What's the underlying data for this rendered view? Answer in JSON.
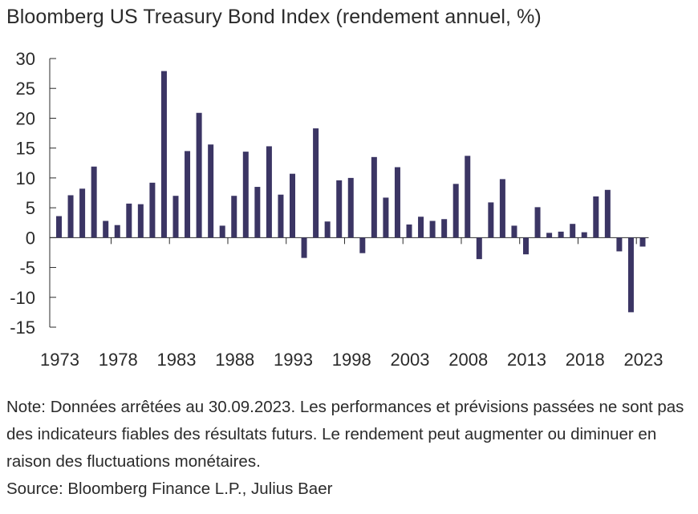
{
  "title": "Bloomberg US Treasury Bond Index (rendement annuel, %)",
  "note": "Note: Données arrêtées au 30.09.2023. Les performances et prévisions passées ne sont pas des indicateurs fiables des résultats futurs. Le rendement peut augmenter ou diminuer en raison des fluctuations monétaires.",
  "source": "Source: Bloomberg Finance L.P., Julius Baer",
  "colors": {
    "bar": "#3b3564",
    "axis": "#2b2b2b",
    "text": "#2b2b2b"
  },
  "chart_data": {
    "type": "bar",
    "title": "Bloomberg US Treasury Bond Index (rendement annuel, %)",
    "xlabel": "",
    "ylabel": "",
    "ylim": [
      -15,
      30
    ],
    "yticks": [
      30,
      25,
      20,
      15,
      10,
      5,
      0,
      -5,
      -10,
      -15
    ],
    "xtick_labels": [
      "1973",
      "1978",
      "1983",
      "1988",
      "1993",
      "1998",
      "2003",
      "2008",
      "2013",
      "2018",
      "2023"
    ],
    "grid": false,
    "legend": "none",
    "categories": [
      "1973",
      "1974",
      "1975",
      "1976",
      "1977",
      "1978",
      "1979",
      "1980",
      "1981",
      "1982",
      "1983",
      "1984",
      "1985",
      "1986",
      "1987",
      "1988",
      "1989",
      "1990",
      "1991",
      "1992",
      "1993",
      "1994",
      "1995",
      "1996",
      "1997",
      "1998",
      "1999",
      "2000",
      "2001",
      "2002",
      "2003",
      "2004",
      "2005",
      "2006",
      "2007",
      "2008",
      "2009",
      "2010",
      "2011",
      "2012",
      "2013",
      "2014",
      "2015",
      "2016",
      "2017",
      "2018",
      "2019",
      "2020",
      "2021",
      "2022",
      "2023"
    ],
    "values": [
      3.6,
      7.1,
      8.2,
      11.9,
      2.8,
      2.1,
      5.7,
      5.6,
      9.2,
      27.9,
      7.0,
      14.5,
      20.9,
      15.6,
      2.0,
      7.0,
      14.4,
      8.5,
      15.3,
      7.2,
      10.7,
      -3.4,
      18.3,
      2.7,
      9.6,
      10.0,
      -2.6,
      13.5,
      6.7,
      11.8,
      2.2,
      3.5,
      2.8,
      3.1,
      9.0,
      13.7,
      -3.6,
      5.9,
      9.8,
      2.0,
      -2.8,
      5.1,
      0.8,
      1.0,
      2.3,
      0.9,
      6.9,
      8.0,
      -2.3,
      -12.5,
      -1.5
    ]
  }
}
